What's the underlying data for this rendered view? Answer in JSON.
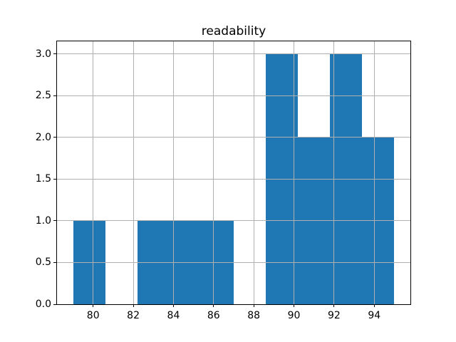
{
  "chart_data": {
    "type": "bar",
    "subtype": "histogram",
    "title": "readability",
    "xlabel": "",
    "ylabel": "",
    "bin_edges": [
      79.0,
      80.6,
      82.2,
      83.8,
      85.4,
      87.0,
      88.6,
      90.2,
      91.8,
      93.4,
      95.0
    ],
    "counts": [
      1,
      0,
      1,
      1,
      1,
      0,
      3,
      2,
      3,
      2
    ],
    "x_ticks": [
      80,
      82,
      84,
      86,
      88,
      90,
      92,
      94
    ],
    "y_ticks": [
      0.0,
      0.5,
      1.0,
      1.5,
      2.0,
      2.5,
      3.0
    ],
    "y_tick_decimals": 1,
    "xlim": [
      78.2,
      95.8
    ],
    "ylim": [
      0,
      3.15
    ],
    "grid": true,
    "grid_above_bars": true,
    "legend": null,
    "colors": {
      "bar": "#1f77b4",
      "grid": "#b0b0b0",
      "spine": "#000000",
      "tick": "#000000",
      "text": "#000000",
      "background": "#ffffff"
    }
  }
}
